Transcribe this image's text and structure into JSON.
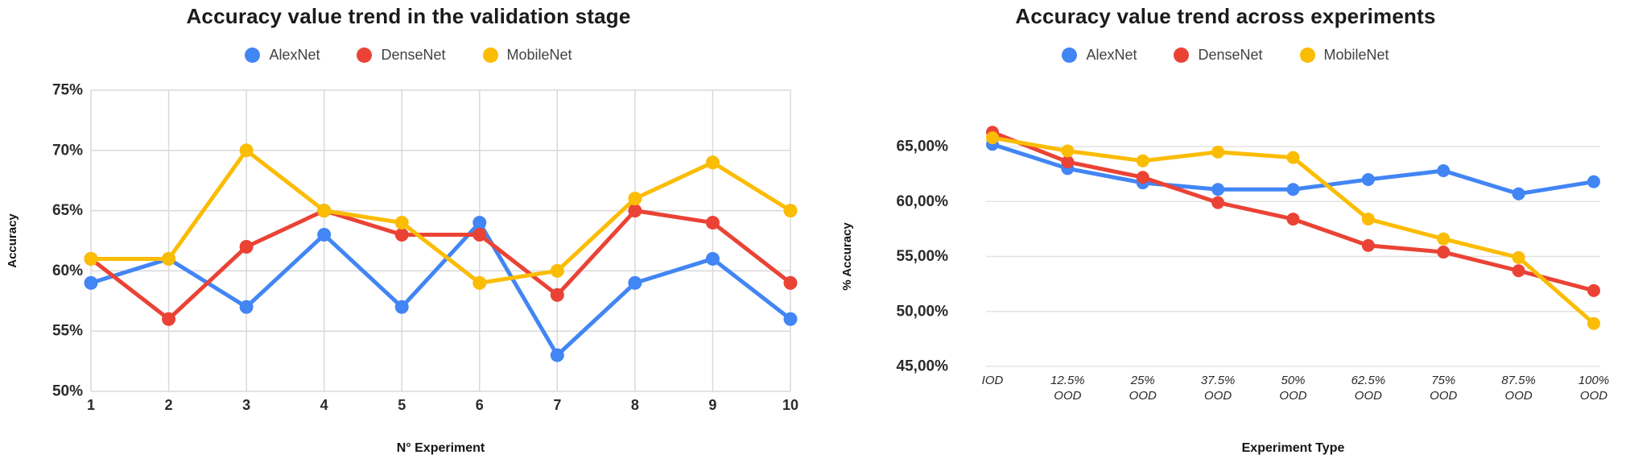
{
  "page": {
    "background": "#ffffff"
  },
  "colors": {
    "alexnet": "#4285F4",
    "densenet": "#EA4335",
    "mobilenet": "#FBBC04",
    "grid_left": "#d9d9d9",
    "grid_right": "#e3e3e3"
  },
  "charts": [
    {
      "title": "Accuracy value trend in the validation stage",
      "xlabel": "N° Experiment",
      "ylabel": "Accuracy",
      "chart_data": {
        "type": "line",
        "categories": [
          "1",
          "2",
          "3",
          "4",
          "5",
          "6",
          "7",
          "8",
          "9",
          "10"
        ],
        "series": [
          {
            "name": "AlexNet",
            "color": "#4285F4",
            "values": [
              59,
              61,
              57,
              63,
              57,
              64,
              53,
              59,
              61,
              56
            ]
          },
          {
            "name": "DenseNet",
            "color": "#EA4335",
            "values": [
              61,
              56,
              62,
              65,
              63,
              63,
              58,
              65,
              64,
              59
            ]
          },
          {
            "name": "MobileNet",
            "color": "#FBBC04",
            "values": [
              61,
              61,
              70,
              65,
              64,
              59,
              60,
              66,
              69,
              65
            ]
          }
        ],
        "title": "Accuracy value trend in the validation stage",
        "xlabel": "N° Experiment",
        "ylabel": "Accuracy",
        "ylim": [
          50,
          75
        ],
        "yticks": [
          {
            "value": 75,
            "label": "75%"
          },
          {
            "value": 70,
            "label": "70%"
          },
          {
            "value": 65,
            "label": "65%"
          },
          {
            "value": 60,
            "label": "60%"
          },
          {
            "value": 55,
            "label": "55%"
          },
          {
            "value": 50,
            "label": "50%"
          }
        ],
        "grid": "horizontal+vertical",
        "legend_position": "top"
      }
    },
    {
      "title": "Accuracy value trend across experiments",
      "xlabel": "Experiment Type",
      "ylabel": "% Accuracy",
      "chart_data": {
        "type": "line",
        "categories": [
          "IOD",
          "12.5%\nOOD",
          "25%\nOOD",
          "37.5%\nOOD",
          "50%\nOOD",
          "62.5%\nOOD",
          "75%\nOOD",
          "87.5%\nOOD",
          "100%\nOOD"
        ],
        "series": [
          {
            "name": "AlexNet",
            "color": "#4285F4",
            "values": [
              65.2,
              63.0,
              61.7,
              61.1,
              61.1,
              62.0,
              62.8,
              60.7,
              61.8
            ]
          },
          {
            "name": "DenseNet",
            "color": "#EA4335",
            "values": [
              66.3,
              63.6,
              62.2,
              59.9,
              58.4,
              56.0,
              55.4,
              53.7,
              51.9
            ]
          },
          {
            "name": "MobileNet",
            "color": "#FBBC04",
            "values": [
              65.8,
              64.6,
              63.7,
              64.5,
              64.0,
              58.4,
              56.6,
              54.9,
              48.9
            ]
          }
        ],
        "title": "Accuracy value trend across experiments",
        "xlabel": "Experiment Type",
        "ylabel": "% Accuracy",
        "ylim": [
          45,
          67.5
        ],
        "yticks": [
          {
            "value": 65,
            "label": "65,00%"
          },
          {
            "value": 60,
            "label": "60,00%"
          },
          {
            "value": 55,
            "label": "55,00%"
          },
          {
            "value": 50,
            "label": "50,00%"
          },
          {
            "value": 45,
            "label": "45,00%"
          }
        ],
        "grid": "horizontal",
        "legend_position": "top"
      }
    }
  ]
}
